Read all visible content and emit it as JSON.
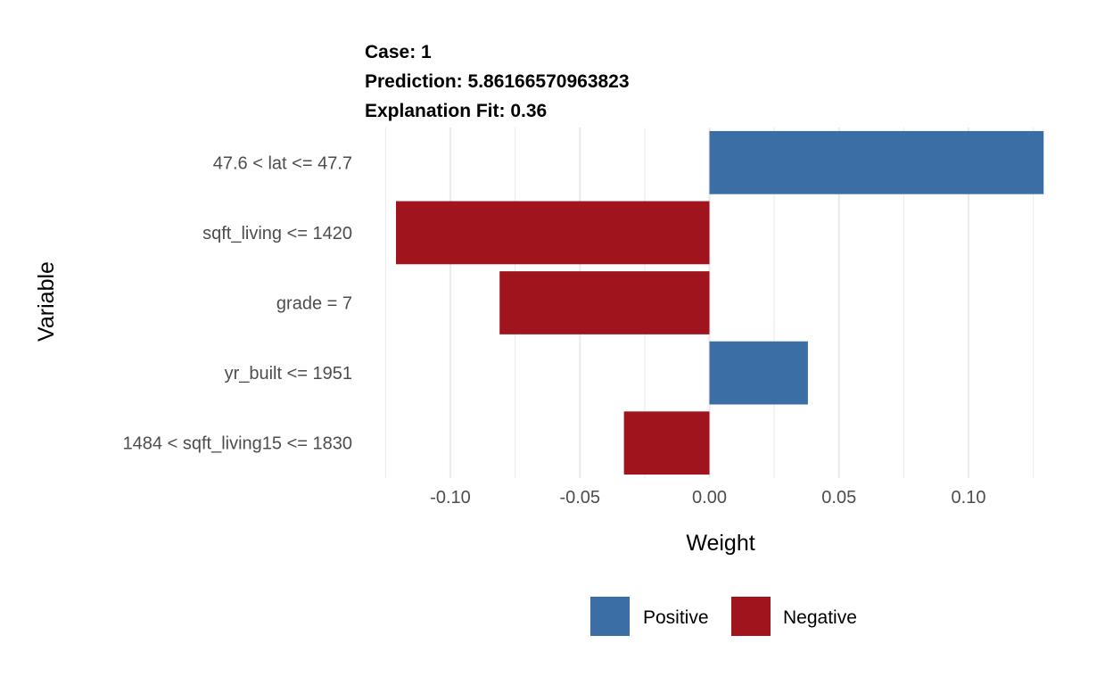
{
  "chart_data": {
    "type": "bar",
    "orientation": "horizontal",
    "title_lines": [
      "Case: 1",
      "Prediction: 5.86166570963823",
      "Explanation Fit: 0.36"
    ],
    "xlabel": "Weight",
    "ylabel": "Variable",
    "xlim": [
      -0.125,
      0.13
    ],
    "xticks": [
      -0.1,
      -0.05,
      0.0,
      0.05,
      0.1
    ],
    "xtick_labels": [
      "-0.10",
      "-0.05",
      "0.00",
      "0.05",
      "0.10"
    ],
    "grid": true,
    "legend_position": "bottom",
    "legend": [
      {
        "name": "Positive",
        "color": "#3a6ea5"
      },
      {
        "name": "Negative",
        "color": "#a0141e"
      }
    ],
    "categories": [
      "47.6 < lat <= 47.7",
      "sqft_living <= 1420",
      "grade = 7",
      "yr_built <= 1951",
      "1484 < sqft_living15 <= 1830"
    ],
    "values": [
      0.129,
      -0.121,
      -0.081,
      0.038,
      -0.033
    ]
  }
}
